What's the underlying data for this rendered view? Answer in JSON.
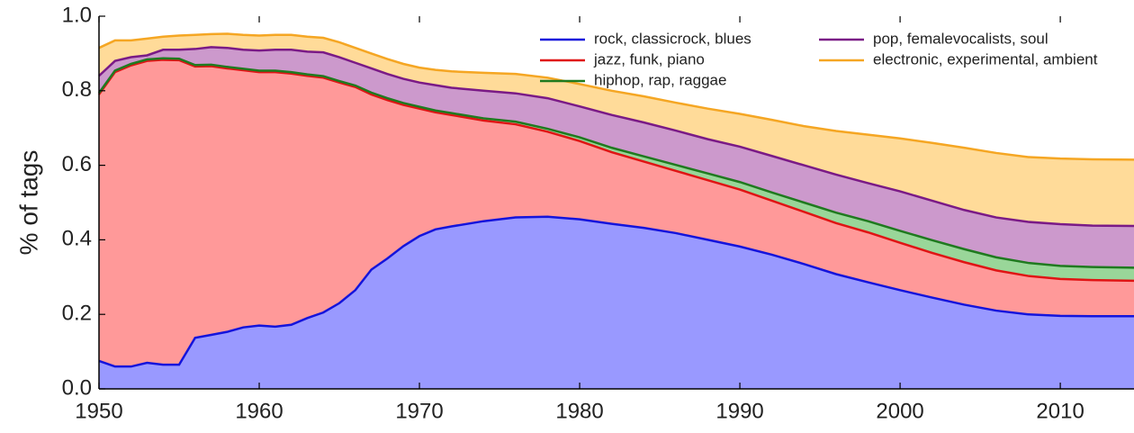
{
  "chart_data": {
    "type": "stacked_area",
    "ylabel": "% of tags",
    "x": [
      1950,
      1951,
      1952,
      1953,
      1954,
      1955,
      1956,
      1957,
      1958,
      1959,
      1960,
      1961,
      1962,
      1963,
      1964,
      1965,
      1966,
      1967,
      1968,
      1969,
      1970,
      1971,
      1972,
      1974,
      1976,
      1978,
      1980,
      1982,
      1984,
      1986,
      1988,
      1990,
      1992,
      1994,
      1996,
      1998,
      2000,
      2002,
      2004,
      2006,
      2008,
      2010,
      2012,
      2015
    ],
    "series": [
      {
        "name": "rock, classicrock, blues",
        "color": "#1414dc",
        "fill": "#9999ff",
        "values": [
          0.075,
          0.06,
          0.06,
          0.07,
          0.065,
          0.065,
          0.137,
          0.145,
          0.153,
          0.165,
          0.17,
          0.167,
          0.172,
          0.19,
          0.205,
          0.23,
          0.265,
          0.32,
          0.35,
          0.383,
          0.41,
          0.428,
          0.436,
          0.45,
          0.46,
          0.462,
          0.455,
          0.443,
          0.432,
          0.418,
          0.4,
          0.382,
          0.36,
          0.335,
          0.308,
          0.286,
          0.265,
          0.245,
          0.226,
          0.21,
          0.2,
          0.196,
          0.195,
          0.195
        ]
      },
      {
        "name": "jazz, funk, piano",
        "color": "#e01414",
        "fill": "#ff9999",
        "values": [
          0.715,
          0.79,
          0.808,
          0.81,
          0.818,
          0.817,
          0.728,
          0.721,
          0.707,
          0.69,
          0.68,
          0.683,
          0.674,
          0.65,
          0.63,
          0.592,
          0.545,
          0.47,
          0.425,
          0.379,
          0.342,
          0.314,
          0.299,
          0.27,
          0.25,
          0.228,
          0.21,
          0.192,
          0.178,
          0.167,
          0.16,
          0.153,
          0.145,
          0.14,
          0.137,
          0.134,
          0.127,
          0.12,
          0.114,
          0.108,
          0.103,
          0.099,
          0.097,
          0.095
        ]
      },
      {
        "name": "hiphop, rap, raggae",
        "color": "#1f7a1f",
        "fill": "#99d699",
        "values": [
          0.004,
          0.004,
          0.004,
          0.004,
          0.004,
          0.004,
          0.004,
          0.004,
          0.004,
          0.004,
          0.004,
          0.004,
          0.004,
          0.004,
          0.004,
          0.004,
          0.004,
          0.005,
          0.005,
          0.005,
          0.005,
          0.005,
          0.005,
          0.006,
          0.007,
          0.008,
          0.01,
          0.012,
          0.014,
          0.016,
          0.018,
          0.02,
          0.022,
          0.025,
          0.028,
          0.03,
          0.032,
          0.034,
          0.035,
          0.035,
          0.035,
          0.035,
          0.035,
          0.035
        ]
      },
      {
        "name": "pop, femalevocalists, soul",
        "color": "#7a1a86",
        "fill": "#cc99cc",
        "values": [
          0.046,
          0.026,
          0.018,
          0.011,
          0.023,
          0.024,
          0.043,
          0.047,
          0.051,
          0.051,
          0.054,
          0.056,
          0.06,
          0.061,
          0.064,
          0.064,
          0.061,
          0.065,
          0.065,
          0.065,
          0.065,
          0.068,
          0.068,
          0.074,
          0.076,
          0.082,
          0.083,
          0.088,
          0.091,
          0.092,
          0.092,
          0.095,
          0.098,
          0.1,
          0.102,
          0.102,
          0.106,
          0.106,
          0.105,
          0.107,
          0.11,
          0.112,
          0.111,
          0.112
        ]
      },
      {
        "name": "electronic, experimental, ambient",
        "color": "#f5a623",
        "fill": "#ffdb99",
        "values": [
          0.075,
          0.055,
          0.045,
          0.045,
          0.035,
          0.038,
          0.038,
          0.035,
          0.038,
          0.04,
          0.04,
          0.04,
          0.04,
          0.04,
          0.039,
          0.04,
          0.04,
          0.04,
          0.04,
          0.04,
          0.04,
          0.041,
          0.044,
          0.048,
          0.052,
          0.055,
          0.06,
          0.065,
          0.07,
          0.075,
          0.082,
          0.088,
          0.097,
          0.105,
          0.117,
          0.13,
          0.142,
          0.155,
          0.167,
          0.173,
          0.174,
          0.176,
          0.178,
          0.178
        ]
      }
    ],
    "xlim": [
      1950,
      2014.6
    ],
    "xticks": [
      1950,
      1960,
      1970,
      1980,
      1990,
      2000,
      2010
    ],
    "ylim": [
      0,
      1
    ],
    "yticks": [
      {
        "value": 0,
        "label": "0.0"
      },
      0.2,
      0.4,
      0.6,
      0.8,
      {
        "value": 1,
        "label": "1.0"
      }
    ],
    "legend": "upper right"
  }
}
